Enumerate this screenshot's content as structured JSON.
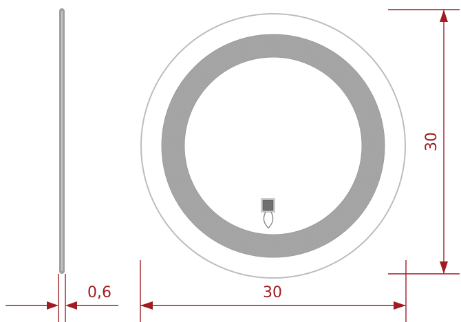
{
  "dimensions": {
    "thickness": "0,6",
    "width": "30",
    "height": "30"
  },
  "colors": {
    "dimension": "#a01c22",
    "outline": "#bdbdbd",
    "coil": "#a9a9a9",
    "chip": "#6f6f6f"
  }
}
